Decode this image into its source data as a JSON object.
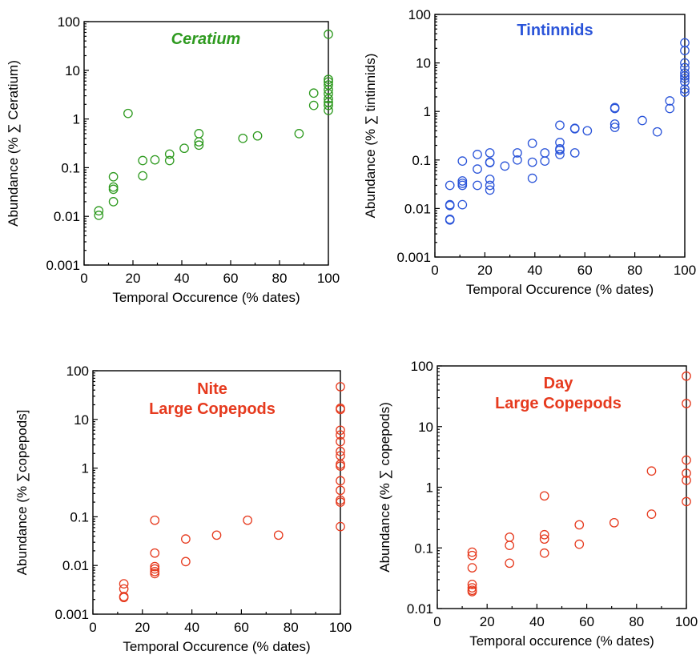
{
  "chart_data": [
    {
      "type": "scatter",
      "title": "Ceratium",
      "title_style": "bold italic",
      "color": "#2e9a1f",
      "xlabel": "Temporal Occurence (% dates)",
      "ylabel": "Abundance (% ∑ Ceratium)",
      "xlim": [
        0,
        100
      ],
      "ylim": [
        0.001,
        100
      ],
      "yscale": "log",
      "xticks": [
        "0",
        "20",
        "40",
        "60",
        "80",
        "100"
      ],
      "yticks": [
        "0.001",
        "0.01",
        "0.1",
        "1",
        "10",
        "100"
      ],
      "grid": false,
      "points": [
        [
          6,
          0.013
        ],
        [
          6,
          0.0105
        ],
        [
          12,
          0.065
        ],
        [
          12,
          0.04
        ],
        [
          12,
          0.036
        ],
        [
          12,
          0.02
        ],
        [
          18,
          1.3
        ],
        [
          24,
          0.14
        ],
        [
          24,
          0.068
        ],
        [
          29,
          0.145
        ],
        [
          35,
          0.19
        ],
        [
          35,
          0.14
        ],
        [
          41,
          0.25
        ],
        [
          47,
          0.5
        ],
        [
          47,
          0.34
        ],
        [
          47,
          0.29
        ],
        [
          65,
          0.4
        ],
        [
          71,
          0.45
        ],
        [
          88,
          0.5
        ],
        [
          94,
          3.4
        ],
        [
          94,
          1.9
        ],
        [
          100,
          55
        ],
        [
          100,
          6.5
        ],
        [
          100,
          5.8
        ],
        [
          100,
          5
        ],
        [
          100,
          4
        ],
        [
          100,
          3.3
        ],
        [
          100,
          2.6
        ],
        [
          100,
          2.2
        ],
        [
          100,
          1.9
        ],
        [
          100,
          1.5
        ]
      ]
    },
    {
      "type": "scatter",
      "title": "Tintinnids",
      "title_style": "bold",
      "color": "#2a54d9",
      "xlabel": "Temporal Occurence (% dates)",
      "ylabel": "Abundance (% ∑ tintinnids)",
      "xlim": [
        0,
        100
      ],
      "ylim": [
        0.001,
        100
      ],
      "yscale": "log",
      "xticks": [
        "0",
        "20",
        "40",
        "60",
        "80",
        "100"
      ],
      "yticks": [
        "0.001",
        "0.01",
        "0.1",
        "1",
        "10",
        "100"
      ],
      "grid": false,
      "points": [
        [
          6,
          0.03
        ],
        [
          6,
          0.012
        ],
        [
          6,
          0.0115
        ],
        [
          6,
          0.006
        ],
        [
          6,
          0.0058
        ],
        [
          11,
          0.095
        ],
        [
          11,
          0.037
        ],
        [
          11,
          0.033
        ],
        [
          11,
          0.03
        ],
        [
          11,
          0.012
        ],
        [
          17,
          0.13
        ],
        [
          17,
          0.065
        ],
        [
          17,
          0.03
        ],
        [
          22,
          0.14
        ],
        [
          22,
          0.09
        ],
        [
          22,
          0.088
        ],
        [
          22,
          0.04
        ],
        [
          22,
          0.03
        ],
        [
          22,
          0.024
        ],
        [
          28,
          0.075
        ],
        [
          33,
          0.14
        ],
        [
          33,
          0.1
        ],
        [
          39,
          0.22
        ],
        [
          39,
          0.09
        ],
        [
          39,
          0.042
        ],
        [
          44,
          0.14
        ],
        [
          44,
          0.095
        ],
        [
          50,
          0.52
        ],
        [
          50,
          0.23
        ],
        [
          50,
          0.17
        ],
        [
          50,
          0.16
        ],
        [
          50,
          0.13
        ],
        [
          56,
          0.45
        ],
        [
          56,
          0.44
        ],
        [
          56,
          0.14
        ],
        [
          61,
          0.4
        ],
        [
          72,
          1.2
        ],
        [
          72,
          1.15
        ],
        [
          72,
          0.55
        ],
        [
          72,
          0.47
        ],
        [
          83,
          0.65
        ],
        [
          89,
          0.38
        ],
        [
          94,
          1.65
        ],
        [
          94,
          1.15
        ],
        [
          100,
          26
        ],
        [
          100,
          18
        ],
        [
          100,
          10
        ],
        [
          100,
          8
        ],
        [
          100,
          6.2
        ],
        [
          100,
          5.4
        ],
        [
          100,
          4.8
        ],
        [
          100,
          4.1
        ],
        [
          100,
          2.9
        ],
        [
          100,
          2.5
        ]
      ]
    },
    {
      "type": "scatter",
      "title": "Nite\nLarge Copepods",
      "title_style": "bold",
      "color": "#e63a1e",
      "xlabel": "Temporal Occurence (% dates)",
      "ylabel": "Abundance (% ∑copepods]",
      "xlim": [
        0,
        100
      ],
      "ylim": [
        0.001,
        100
      ],
      "yscale": "log",
      "xticks": [
        "0",
        "20",
        "40",
        "60",
        "80",
        "100"
      ],
      "yticks": [
        "0.001",
        "0.01",
        "0.1",
        "1",
        "10",
        "100"
      ],
      "grid": false,
      "points": [
        [
          12.5,
          0.0042
        ],
        [
          12.5,
          0.0033
        ],
        [
          12.5,
          0.0023
        ],
        [
          12.5,
          0.0022
        ],
        [
          25,
          0.085
        ],
        [
          25,
          0.018
        ],
        [
          25,
          0.0095
        ],
        [
          25,
          0.0085
        ],
        [
          25,
          0.0075
        ],
        [
          25,
          0.0068
        ],
        [
          37.5,
          0.035
        ],
        [
          37.5,
          0.012
        ],
        [
          50,
          0.042
        ],
        [
          62.5,
          0.085
        ],
        [
          75,
          0.042
        ],
        [
          100,
          47
        ],
        [
          100,
          17
        ],
        [
          100,
          16
        ],
        [
          100,
          6
        ],
        [
          100,
          4.8
        ],
        [
          100,
          3.5
        ],
        [
          100,
          2.2
        ],
        [
          100,
          1.8
        ],
        [
          100,
          1.2
        ],
        [
          100,
          1.1
        ],
        [
          100,
          0.55
        ],
        [
          100,
          0.35
        ],
        [
          100,
          0.22
        ],
        [
          100,
          0.2
        ],
        [
          100,
          0.063
        ]
      ]
    },
    {
      "type": "scatter",
      "title": "Day\nLarge Copepods",
      "title_style": "bold",
      "color": "#e63a1e",
      "xlabel": "Temporal occurence (% dates)",
      "ylabel": "Abundance (% ∑ copepods)",
      "xlim": [
        0,
        100
      ],
      "ylim": [
        0.01,
        100
      ],
      "yscale": "log",
      "xticks": [
        "0",
        "20",
        "40",
        "60",
        "80",
        "100"
      ],
      "yticks": [
        "0.01",
        "0.1",
        "1",
        "10",
        "100"
      ],
      "grid": false,
      "points": [
        [
          14,
          0.085
        ],
        [
          14,
          0.075
        ],
        [
          14,
          0.047
        ],
        [
          14,
          0.025
        ],
        [
          14,
          0.022
        ],
        [
          14,
          0.02
        ],
        [
          14,
          0.019
        ],
        [
          29,
          0.15
        ],
        [
          29,
          0.11
        ],
        [
          29,
          0.056
        ],
        [
          43,
          0.72
        ],
        [
          43,
          0.165
        ],
        [
          43,
          0.14
        ],
        [
          43,
          0.082
        ],
        [
          57,
          0.24
        ],
        [
          57,
          0.115
        ],
        [
          71,
          0.26
        ],
        [
          86,
          1.85
        ],
        [
          86,
          0.36
        ],
        [
          100,
          68
        ],
        [
          100,
          24
        ],
        [
          100,
          2.8
        ],
        [
          100,
          1.7
        ],
        [
          100,
          1.3
        ],
        [
          100,
          0.58
        ]
      ]
    }
  ]
}
